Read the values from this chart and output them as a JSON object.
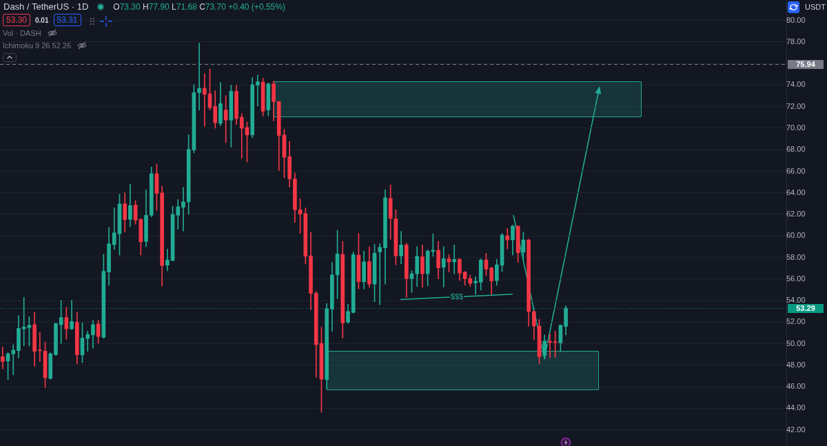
{
  "chart_data": {
    "type": "candlestick",
    "title": "Dash / TetherUS · 1D",
    "categories": [
      null,
      null,
      null,
      null,
      null,
      null,
      null,
      null,
      null,
      null,
      null,
      null,
      null,
      null,
      null,
      null,
      null,
      null,
      null,
      null,
      null,
      null,
      null,
      null,
      null,
      null,
      null,
      null,
      null,
      null,
      null,
      null,
      null,
      null,
      null,
      null,
      null,
      null,
      null,
      null,
      null,
      null,
      null,
      null,
      null,
      null,
      null,
      null,
      null,
      null,
      null,
      null,
      null,
      null,
      null,
      null,
      null,
      null,
      null,
      null,
      null,
      null,
      null,
      null,
      null,
      null,
      null,
      null,
      null,
      null,
      null,
      null,
      null,
      null,
      null,
      null,
      null,
      null,
      null,
      null,
      null,
      null,
      null,
      null,
      null,
      null,
      null,
      null,
      null,
      null,
      null,
      null,
      null,
      null,
      null,
      null,
      null,
      null,
      null,
      null,
      null,
      null,
      null,
      null,
      null,
      null,
      null,
      null,
      null,
      null,
      null,
      null,
      null,
      null,
      null,
      null,
      null,
      null,
      null,
      null,
      null,
      null,
      null,
      null,
      null,
      null,
      null,
      null,
      null,
      null,
      null,
      null,
      null,
      null,
      null,
      null,
      null,
      null,
      null,
      null,
      null,
      null,
      null,
      null,
      null,
      null,
      null,
      null
    ],
    "ohlc": [
      [
        48.79,
        49.69,
        47.67,
        48.34
      ],
      [
        48.39,
        49.17,
        46.66,
        49.06
      ],
      [
        49.06,
        49.91,
        47.11,
        49.4
      ],
      [
        49.35,
        52.61,
        48.68,
        51.42
      ],
      [
        51.37,
        54.29,
        49.8,
        51.55
      ],
      [
        51.49,
        52.5,
        49.8,
        51.71
      ],
      [
        51.76,
        52.9,
        47.89,
        49.29
      ],
      [
        49.4,
        51.04,
        48.34,
        49.35
      ],
      [
        49.31,
        50.14,
        45.94,
        46.84
      ],
      [
        46.77,
        49.17,
        46.7,
        49.06
      ],
      [
        48.97,
        51.9,
        48.9,
        51.87
      ],
      [
        51.76,
        54.0,
        50.03,
        52.43
      ],
      [
        52.43,
        53.39,
        50.41,
        51.37
      ],
      [
        51.37,
        54.02,
        51.3,
        52.05
      ],
      [
        51.98,
        52.9,
        48.12,
        48.97
      ],
      [
        48.95,
        51.93,
        48.23,
        50.52
      ],
      [
        50.48,
        51.15,
        49.29,
        50.86
      ],
      [
        50.81,
        52.16,
        49.58,
        51.76
      ],
      [
        51.82,
        52.2,
        50.03,
        50.66
      ],
      [
        50.59,
        58.29,
        50.5,
        56.72
      ],
      [
        56.65,
        60.8,
        55.41,
        59.27
      ],
      [
        59.19,
        62.6,
        58.74,
        60.29
      ],
      [
        60.2,
        63.88,
        58.22,
        62.98
      ],
      [
        62.98,
        63.99,
        60.35,
        61.52
      ],
      [
        61.54,
        64.8,
        60.87,
        62.82
      ],
      [
        62.87,
        63.27,
        61.07,
        61.47
      ],
      [
        61.54,
        61.6,
        58.22,
        59.45
      ],
      [
        59.5,
        64.28,
        59.0,
        61.92
      ],
      [
        61.92,
        66.41,
        61.77,
        65.78
      ],
      [
        65.78,
        66.68,
        62.37,
        63.94
      ],
      [
        63.99,
        64.62,
        55.35,
        57.25
      ],
      [
        57.28,
        58.78,
        56.76,
        57.77
      ],
      [
        57.73,
        62.75,
        57.66,
        61.99
      ],
      [
        61.92,
        63.38,
        60.62,
        62.71
      ],
      [
        62.66,
        64.51,
        60.46,
        63.16
      ],
      [
        63.16,
        69.4,
        61.99,
        68.03
      ],
      [
        67.98,
        74.04,
        67.72,
        73.3
      ],
      [
        73.3,
        77.9,
        71.68,
        73.7
      ],
      [
        73.71,
        75.06,
        70.18,
        73.15
      ],
      [
        73.19,
        75.5,
        71.69,
        71.91
      ],
      [
        72.02,
        73.48,
        70.0,
        70.5
      ],
      [
        70.45,
        74.27,
        70.23,
        72.29
      ],
      [
        71.69,
        73.03,
        68.66,
        70.75
      ],
      [
        70.75,
        74.0,
        68.25,
        73.42
      ],
      [
        73.42,
        74.0,
        70.34,
        70.9
      ],
      [
        71.01,
        71.35,
        67.2,
        70.0
      ],
      [
        70.07,
        70.57,
        66.86,
        69.38
      ],
      [
        69.38,
        74.72,
        69.11,
        74.04
      ],
      [
        74.0,
        74.94,
        72.07,
        74.31
      ],
      [
        74.27,
        74.65,
        71.13,
        71.58
      ],
      [
        71.69,
        74.2,
        71.13,
        74.11
      ],
      [
        74.11,
        74.38,
        70.68,
        72.47
      ],
      [
        72.47,
        72.5,
        66.08,
        69.33
      ],
      [
        69.38,
        69.89,
        65.4,
        67.31
      ],
      [
        67.36,
        68.77,
        64.55,
        65.29
      ],
      [
        65.29,
        65.85,
        61.25,
        62.44
      ],
      [
        62.44,
        63.45,
        60.24,
        62.04
      ],
      [
        62.08,
        62.6,
        57.39,
        58.11
      ],
      [
        58.15,
        60.35,
        53.17,
        54.67
      ],
      [
        54.67,
        54.85,
        46.88,
        49.91
      ],
      [
        50.03,
        51.53,
        43.63,
        46.7
      ],
      [
        46.66,
        53.73,
        45.76,
        53.24
      ],
      [
        53.21,
        57.55,
        51.15,
        56.38
      ],
      [
        56.38,
        60.53,
        54.18,
        58.33
      ],
      [
        58.29,
        59.5,
        50.52,
        51.93
      ],
      [
        52.0,
        53.66,
        51.87,
        52.99
      ],
      [
        52.9,
        58.51,
        52.83,
        58.26
      ],
      [
        58.22,
        60.24,
        55.08,
        55.75
      ],
      [
        55.75,
        58.6,
        55.08,
        57.59
      ],
      [
        57.61,
        59.0,
        55.23,
        55.53
      ],
      [
        55.53,
        59.23,
        53.89,
        58.4
      ],
      [
        58.51,
        59.3,
        53.62,
        58.94
      ],
      [
        58.89,
        64.28,
        55.53,
        63.54
      ],
      [
        63.49,
        64.73,
        59.68,
        61.63
      ],
      [
        61.59,
        62.44,
        57.32,
        58.15
      ],
      [
        58.15,
        60.42,
        57.39,
        59.16
      ],
      [
        59.16,
        59.34,
        54.29,
        56.04
      ],
      [
        56.04,
        56.76,
        54.74,
        56.49
      ],
      [
        56.49,
        59.0,
        55.3,
        58.11
      ],
      [
        58.06,
        59.16,
        55.23,
        56.49
      ],
      [
        56.49,
        58.7,
        55.37,
        58.6
      ],
      [
        58.56,
        60.2,
        58.11,
        58.67
      ],
      [
        58.67,
        59.5,
        56.02,
        57.03
      ],
      [
        57.1,
        59.0,
        55.26,
        57.88
      ],
      [
        57.88,
        58.26,
        56.65,
        57.59
      ],
      [
        57.59,
        59.16,
        56.49,
        57.82
      ],
      [
        57.84,
        57.9,
        55.86,
        56.54
      ],
      [
        56.65,
        56.7,
        55.41,
        56.04
      ],
      [
        56.04,
        56.36,
        55.3,
        55.59
      ],
      [
        55.64,
        56.2,
        54.58,
        55.8
      ],
      [
        55.71,
        57.88,
        54.97,
        57.77
      ],
      [
        57.77,
        58.38,
        56.31,
        56.92
      ],
      [
        57.03,
        57.1,
        54.56,
        55.82
      ],
      [
        55.86,
        57.84,
        55.41,
        57.32
      ],
      [
        57.28,
        60.24,
        56.69,
        60.08
      ],
      [
        60.02,
        60.69,
        58.78,
        59.63
      ],
      [
        59.63,
        61.0,
        58.22,
        60.91
      ],
      [
        60.91,
        60.95,
        57.55,
        58.44
      ],
      [
        58.49,
        60.35,
        57.77,
        59.63
      ],
      [
        59.63,
        59.7,
        51.6,
        52.99
      ],
      [
        52.99,
        53.05,
        50.36,
        51.64
      ],
      [
        51.64,
        52.27,
        48.12,
        48.79
      ],
      [
        48.9,
        50.81,
        48.57,
        50.25
      ],
      [
        50.21,
        50.88,
        48.68,
        50.12
      ],
      [
        50.19,
        51.15,
        48.72,
        50.1
      ],
      [
        50.07,
        51.75,
        49.24,
        51.71
      ],
      [
        51.6,
        53.51,
        50.81,
        53.29
      ],
      null,
      null,
      null,
      null,
      null,
      null,
      null,
      null,
      null,
      null,
      null,
      null,
      null,
      null,
      null,
      null,
      null,
      null,
      null,
      null,
      null,
      null,
      null,
      null,
      null,
      null,
      null,
      null,
      null,
      null,
      null,
      null,
      null,
      null,
      null,
      null,
      null,
      null,
      null,
      null,
      null
    ],
    "colors": [
      "#f23645",
      "#22ab94",
      "#22ab94",
      "#22ab94",
      "#22ab94",
      "#22ab94",
      "#f23645",
      "#f23645",
      "#f23645",
      "#22ab94",
      "#22ab94",
      "#22ab94",
      "#f23645",
      "#22ab94",
      "#f23645",
      "#22ab94",
      "#22ab94",
      "#22ab94",
      "#f23645",
      "#22ab94",
      "#22ab94",
      "#22ab94",
      "#22ab94",
      "#f23645",
      "#22ab94",
      "#f23645",
      "#f23645",
      "#22ab94",
      "#22ab94",
      "#f23645",
      "#f23645",
      "#22ab94",
      "#22ab94",
      "#22ab94",
      "#22ab94",
      "#22ab94",
      "#22ab94",
      "#22ab94",
      "#f23645",
      "#f23645",
      "#f23645",
      "#22ab94",
      "#f23645",
      "#22ab94",
      "#f23645",
      "#f23645",
      "#f23645",
      "#22ab94",
      "#22ab94",
      "#f23645",
      "#22ab94",
      "#f23645",
      "#f23645",
      "#f23645",
      "#f23645",
      "#f23645",
      "#f23645",
      "#f23645",
      "#f23645",
      "#f23645",
      "#f23645",
      "#22ab94",
      "#22ab94",
      "#22ab94",
      "#f23645",
      "#22ab94",
      "#22ab94",
      "#f23645",
      "#22ab94",
      "#f23645",
      "#22ab94",
      "#22ab94",
      "#22ab94",
      "#f23645",
      "#f23645",
      "#22ab94",
      "#f23645",
      "#22ab94",
      "#22ab94",
      "#f23645",
      "#22ab94",
      "#22ab94",
      "#f23645",
      "#22ab94",
      "#f23645",
      "#22ab94",
      "#f23645",
      "#f23645",
      "#f23645",
      "#22ab94",
      "#22ab94",
      "#f23645",
      "#f23645",
      "#22ab94",
      "#22ab94",
      "#f23645",
      "#22ab94",
      "#f23645",
      "#22ab94",
      "#f23645",
      "#f23645",
      "#f23645",
      "#22ab94",
      "#f23645",
      "#f23645",
      "#22ab94",
      "#22ab94",
      null,
      null,
      null,
      null,
      null,
      null,
      null,
      null,
      null,
      null,
      null,
      null,
      null,
      null,
      null,
      null,
      null,
      null,
      null,
      null,
      null,
      null,
      null,
      null,
      null,
      null,
      null,
      null,
      null,
      null,
      null,
      null,
      null,
      null,
      null,
      null,
      null,
      null,
      null,
      null,
      null
    ],
    "ylim": [
      40.5,
      81.9
    ],
    "yticks": [
      {
        "value": 42,
        "label": "42.00"
      },
      {
        "value": 44,
        "label": "44.00"
      },
      {
        "value": 46,
        "label": "46.00"
      },
      {
        "value": 48,
        "label": "48.00"
      },
      {
        "value": 50,
        "label": "50.00"
      },
      {
        "value": 52,
        "label": "52.00"
      },
      {
        "value": 54,
        "label": "54.00"
      },
      {
        "value": 56,
        "label": "56.00"
      },
      {
        "value": 58,
        "label": "58.00"
      },
      {
        "value": 60,
        "label": "60.00"
      },
      {
        "value": 62,
        "label": "62.00"
      },
      {
        "value": 64,
        "label": "64.00"
      },
      {
        "value": 66,
        "label": "66.00"
      },
      {
        "value": 68,
        "label": "68.00"
      },
      {
        "value": 70,
        "label": "70.00"
      },
      {
        "value": 72,
        "label": "72.00"
      },
      {
        "value": 74,
        "label": "74.00"
      },
      {
        "value": 76,
        "label": null
      },
      {
        "value": 78,
        "label": "78.00"
      },
      {
        "value": 80,
        "label": "80.00"
      }
    ],
    "grid": "y",
    "tick_labels": "y",
    "ref_lines": [
      {
        "axis": "y",
        "value": 75.94,
        "label": "75.94",
        "color": "#787b86",
        "line_style": "dashed"
      },
      {
        "axis": "y",
        "value": 53.29,
        "label": "53.29",
        "color": "#089981",
        "line_style": "dotted"
      }
    ],
    "bands": [
      {
        "axis": "y",
        "from": 71.1,
        "to": 74.35,
        "color": "#22ab94"
      },
      {
        "axis": "y",
        "from": 45.75,
        "to": 49.35,
        "color": "#22ab94"
      }
    ],
    "annotations": [
      "O73.30 H77.90 L71.68 C73.70 +0.40 (+0.55%)",
      "53.30",
      "0.01",
      "53.31",
      "Vol · DASH",
      "Ichimoku 9 26 52 26",
      "USDT",
      "$$$"
    ]
  }
}
